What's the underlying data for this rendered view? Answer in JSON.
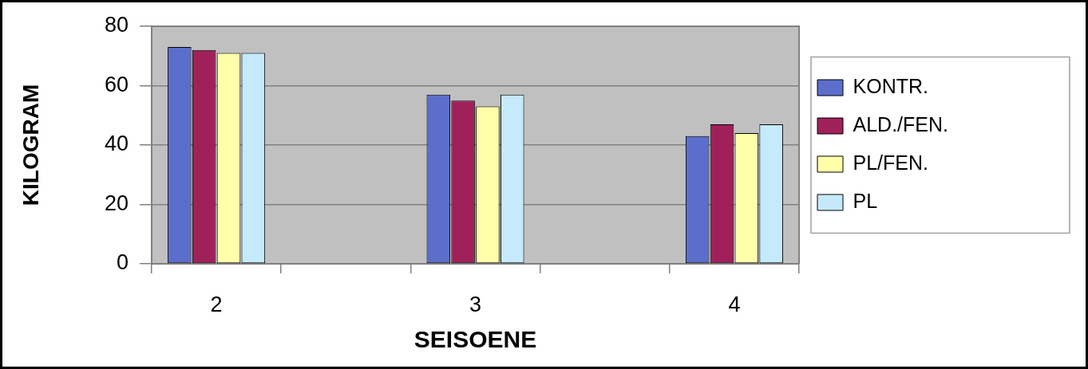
{
  "chart_data": {
    "type": "bar",
    "categories": [
      "2",
      null,
      "3",
      null,
      "4"
    ],
    "series": [
      {
        "name": "KONTR.",
        "color": "#5c6ecb",
        "values": [
          73,
          null,
          57,
          null,
          43
        ]
      },
      {
        "name": "ALD./FEN.",
        "color": "#a0205a",
        "values": [
          72,
          null,
          55,
          null,
          47
        ]
      },
      {
        "name": "PL/FEN.",
        "color": "#ffffaa",
        "values": [
          71,
          null,
          53,
          null,
          44
        ]
      },
      {
        "name": "PL",
        "color": "#c4eafc",
        "values": [
          71,
          null,
          57,
          null,
          47
        ]
      }
    ],
    "xlabel": "SEISOENE",
    "ylabel": "KILOGRAM",
    "ylim": [
      0,
      80
    ],
    "yticks": [
      0,
      20,
      40,
      60,
      80
    ],
    "grid": "y",
    "legend": "right"
  }
}
